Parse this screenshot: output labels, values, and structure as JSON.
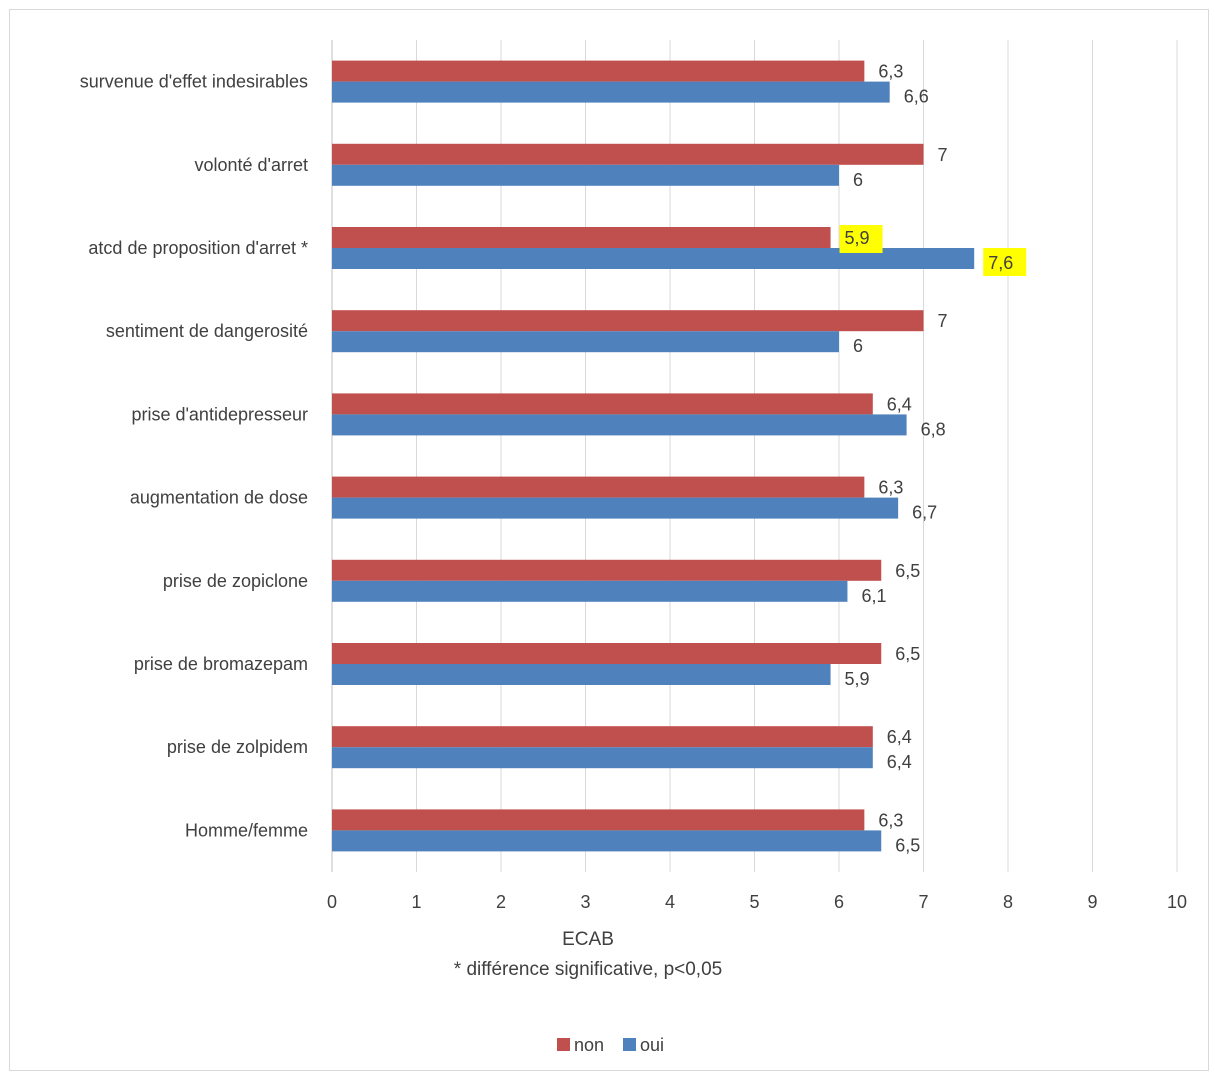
{
  "chart_data": {
    "type": "bar",
    "orientation": "horizontal",
    "categories": [
      "survenue d'effet indesirables",
      "volonté d'arret",
      "atcd de proposition d'arret *",
      "sentiment de dangerosité",
      "prise d'antidepresseur",
      "augmentation de dose",
      "prise de zopiclone",
      "prise de bromazepam",
      "prise de zolpidem",
      "Homme/femme"
    ],
    "series": [
      {
        "name": "non",
        "color": "#c0504d",
        "values": [
          6.3,
          7,
          5.9,
          7,
          6.4,
          6.3,
          6.5,
          6.5,
          6.4,
          6.3
        ],
        "labels": [
          "6,3",
          "7",
          "5,9",
          "7",
          "6,4",
          "6,3",
          "6,5",
          "6,5",
          "6,4",
          "6,3"
        ]
      },
      {
        "name": "oui",
        "color": "#4f81bd",
        "values": [
          6.6,
          6,
          7.6,
          6,
          6.8,
          6.7,
          6.1,
          5.9,
          6.4,
          6.5
        ],
        "labels": [
          "6,6",
          "6",
          "7,6",
          "6",
          "6,8",
          "6,7",
          "6,1",
          "5,9",
          "6,4",
          "6,5"
        ]
      }
    ],
    "highlighted_labels": [
      {
        "category_index": 2,
        "series_index": 0,
        "color": "#ffff00"
      },
      {
        "category_index": 2,
        "series_index": 1,
        "color": "#ffff00"
      }
    ],
    "xlim": [
      0,
      10
    ],
    "xticks": [
      0,
      1,
      2,
      3,
      4,
      5,
      6,
      7,
      8,
      9,
      10
    ],
    "xlabel": "ECAB",
    "note": "* différence significative, p<0,05",
    "grid": true,
    "legend_position": "bottom"
  }
}
